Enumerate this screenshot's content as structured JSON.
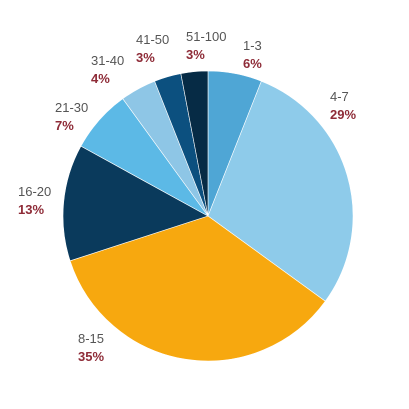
{
  "chart_data": {
    "type": "pie",
    "title": "",
    "start_angle_deg": 0,
    "direction": "clockwise",
    "slices": [
      {
        "label": "1-3",
        "value": 6,
        "display": "6%",
        "color": "#4fa6d5"
      },
      {
        "label": "4-7",
        "value": 29,
        "display": "29%",
        "color": "#8ecbea"
      },
      {
        "label": "8-15",
        "value": 35,
        "display": "35%",
        "color": "#f7a80f"
      },
      {
        "label": "16-20",
        "value": 13,
        "display": "13%",
        "color": "#0a3a5c"
      },
      {
        "label": "21-30",
        "value": 7,
        "display": "7%",
        "color": "#5cb9e6"
      },
      {
        "label": "31-40",
        "value": 4,
        "display": "4%",
        "color": "#8ec6e6"
      },
      {
        "label": "41-50",
        "value": 3,
        "display": "3%",
        "color": "#0c507f"
      },
      {
        "label": "51-100",
        "value": 3,
        "display": "3%",
        "color": "#062b45"
      }
    ],
    "label_color": "#555555",
    "value_color": "#8e2b37"
  }
}
